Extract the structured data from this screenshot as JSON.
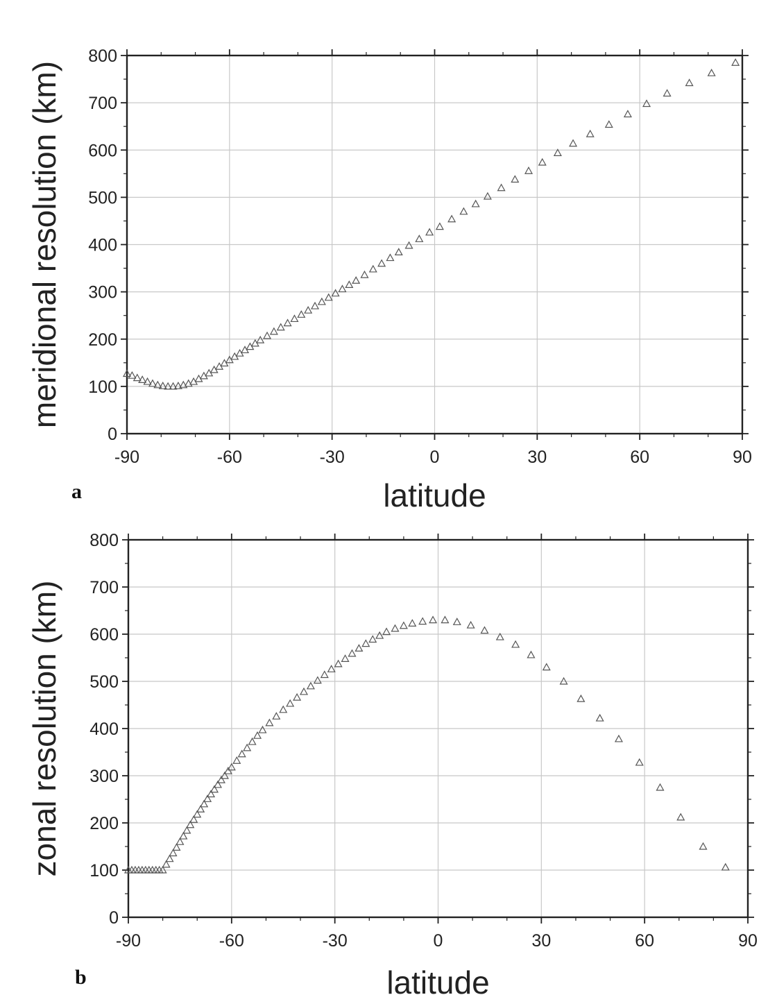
{
  "chart_data": [
    {
      "type": "scatter",
      "panel_label": "a",
      "xlabel": "latitude",
      "ylabel": "meridional resolution (km)",
      "xlim": [
        -90,
        90
      ],
      "ylim": [
        0,
        800
      ],
      "xticks": [
        -90,
        -60,
        -30,
        0,
        30,
        60,
        90
      ],
      "yticks": [
        0,
        100,
        200,
        300,
        400,
        500,
        600,
        700,
        800
      ],
      "grid": true,
      "marker": "open-triangle",
      "x": [
        -90,
        -88.5,
        -87,
        -85.5,
        -84,
        -82.5,
        -81,
        -79.5,
        -78,
        -76.5,
        -75,
        -73.5,
        -72,
        -70.5,
        -69,
        -67.5,
        -66,
        -64.5,
        -63,
        -61.5,
        -60,
        -58.5,
        -57,
        -55.5,
        -54,
        -52.5,
        -51,
        -49,
        -47,
        -45,
        -43,
        -41,
        -39,
        -37,
        -35,
        -33,
        -31,
        -29,
        -27,
        -25,
        -23,
        -20.5,
        -18,
        -15.5,
        -13,
        -10.5,
        -7.5,
        -4.5,
        -1.5,
        1.5,
        5,
        8.5,
        12,
        15.5,
        19.5,
        23.5,
        27.5,
        31.5,
        36,
        40.5,
        45.5,
        51,
        56.5,
        62,
        68,
        74.5,
        81,
        88
      ],
      "y": [
        127,
        123,
        118,
        114,
        110,
        106,
        103,
        101,
        100,
        100,
        101,
        103,
        106,
        110,
        116,
        122,
        128,
        135,
        142,
        149,
        156,
        163,
        170,
        177,
        184,
        191,
        198,
        207,
        216,
        225,
        234,
        243,
        252,
        261,
        270,
        279,
        288,
        297,
        306,
        315,
        324,
        336,
        348,
        360,
        372,
        384,
        398,
        412,
        426,
        438,
        454,
        470,
        486,
        502,
        520,
        538,
        556,
        574,
        594,
        614,
        634,
        654,
        676,
        698,
        720,
        742,
        763,
        785
      ]
    },
    {
      "type": "scatter",
      "panel_label": "b",
      "xlabel": "latitude",
      "ylabel": "zonal resolution (km)",
      "xlim": [
        -90,
        90
      ],
      "ylim": [
        0,
        800
      ],
      "xticks": [
        -90,
        -60,
        -30,
        0,
        30,
        60,
        90
      ],
      "yticks": [
        0,
        100,
        200,
        300,
        400,
        500,
        600,
        700,
        800
      ],
      "grid": true,
      "marker": "open-triangle",
      "x": [
        -90,
        -89,
        -88,
        -87,
        -86,
        -85,
        -84,
        -83,
        -82,
        -81,
        -80,
        -79,
        -78,
        -77,
        -76,
        -75,
        -74,
        -73,
        -72,
        -71,
        -70,
        -69,
        -68,
        -67,
        -66,
        -65,
        -64,
        -63,
        -62,
        -61,
        -60,
        -58.5,
        -57,
        -55.5,
        -54,
        -52.5,
        -51,
        -49,
        -47,
        -45,
        -43,
        -41,
        -39,
        -37,
        -35,
        -33,
        -31,
        -29,
        -27,
        -25,
        -23,
        -21,
        -19,
        -17,
        -15,
        -12.5,
        -10,
        -7.5,
        -4.5,
        -1.5,
        2,
        5.5,
        9.5,
        13.5,
        18,
        22.5,
        27,
        31.5,
        36.5,
        41.5,
        47,
        52.5,
        58.5,
        64.5,
        70.5,
        77,
        83.5
      ],
      "y": [
        100,
        100,
        100,
        100,
        100,
        100,
        100,
        100,
        100,
        100,
        100,
        112,
        124,
        136,
        148,
        160,
        172,
        184,
        196,
        207,
        218,
        229,
        240,
        251,
        261,
        271,
        281,
        291,
        300,
        310,
        318,
        332,
        346,
        359,
        372,
        385,
        397,
        412,
        426,
        440,
        453,
        466,
        478,
        490,
        502,
        514,
        526,
        537,
        548,
        559,
        570,
        580,
        589,
        597,
        605,
        612,
        618,
        623,
        627,
        630,
        630,
        626,
        619,
        608,
        594,
        578,
        556,
        530,
        500,
        463,
        422,
        378,
        328,
        275,
        212,
        150,
        106
      ]
    }
  ]
}
